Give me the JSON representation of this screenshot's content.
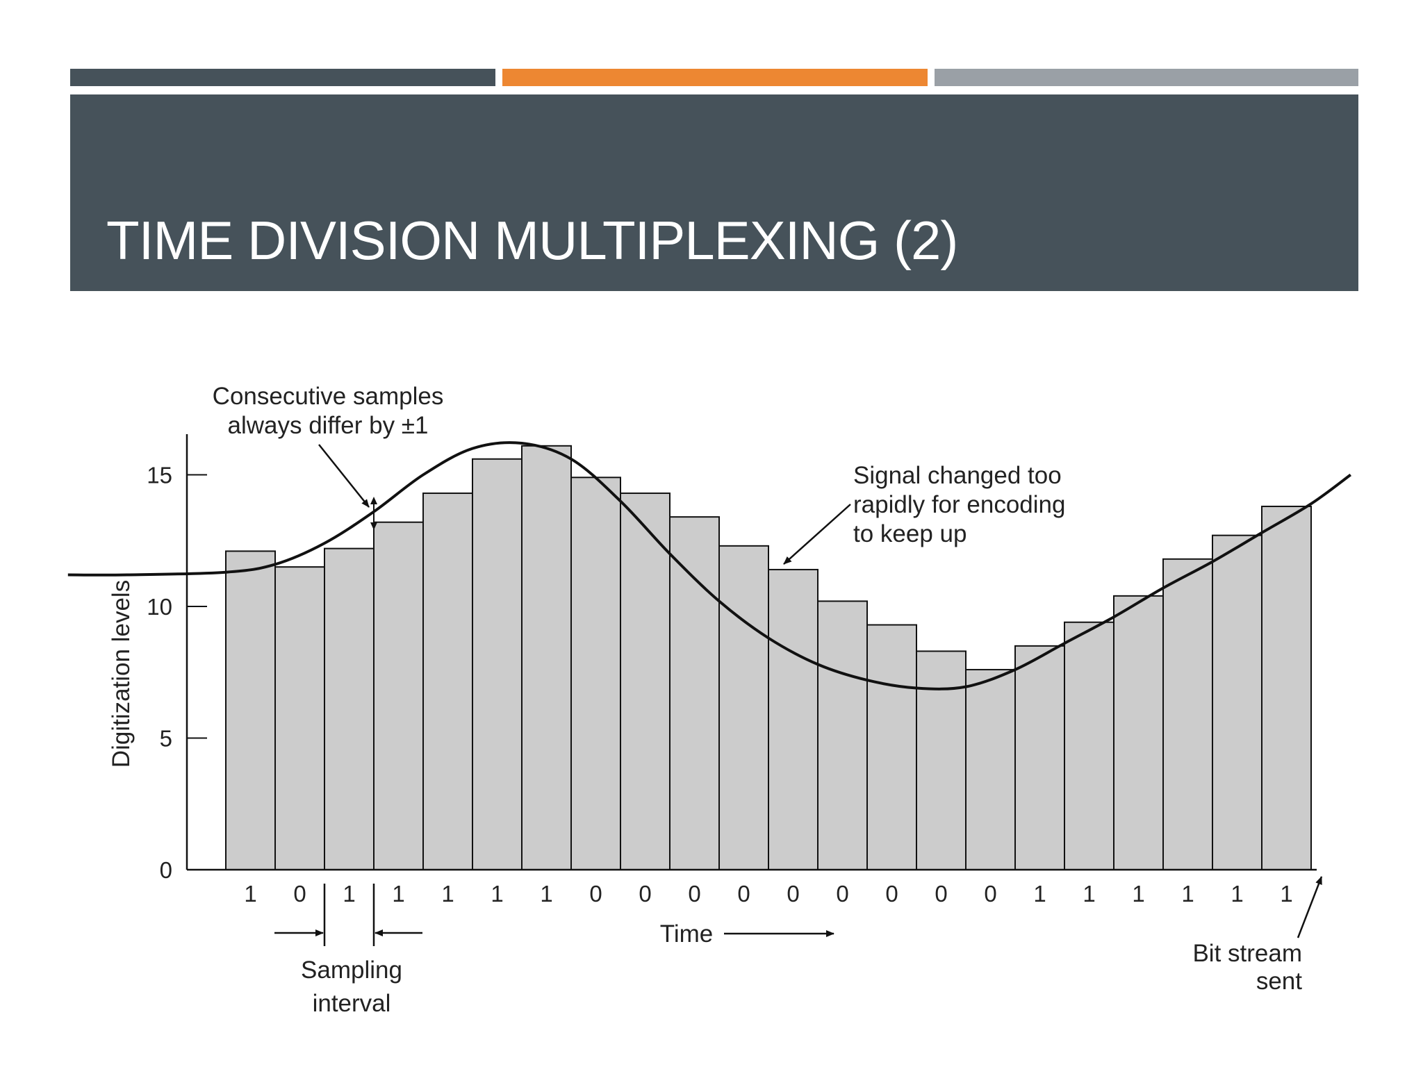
{
  "slide": {
    "title": "TIME DIVISION MULTIPLEXING (2)",
    "colors": {
      "bar_left": "#46525a",
      "bar_mid": "#ed8732",
      "bar_right": "#9aa0a6",
      "banner": "#46525a"
    }
  },
  "chart_data": {
    "type": "bar",
    "ylabel": "Digitization levels",
    "xlabel": "Time",
    "ylim": [
      0,
      17
    ],
    "y_ticks": [
      0,
      5,
      10,
      15
    ],
    "values": [
      12.1,
      11.5,
      12.2,
      13.2,
      14.3,
      15.6,
      16.1,
      14.9,
      14.3,
      13.4,
      12.3,
      11.4,
      10.2,
      9.3,
      8.3,
      7.6,
      8.5,
      9.4,
      10.4,
      11.8,
      12.7,
      13.8
    ],
    "bits": [
      "1",
      "0",
      "1",
      "1",
      "1",
      "1",
      "1",
      "0",
      "0",
      "0",
      "0",
      "0",
      "0",
      "0",
      "0",
      "0",
      "1",
      "1",
      "1",
      "1",
      "1",
      "1"
    ],
    "signal_curve": {
      "t": [
        -3.2,
        -2,
        0,
        1,
        2,
        3,
        4,
        5,
        6,
        7,
        8,
        9,
        10,
        11,
        12,
        13,
        14,
        15,
        16,
        17,
        18,
        19,
        20,
        21,
        22,
        22.8
      ],
      "level": [
        11.2,
        11.2,
        11.3,
        11.6,
        12.4,
        13.6,
        15.0,
        16.0,
        16.2,
        15.6,
        14.0,
        12.0,
        10.2,
        8.8,
        7.8,
        7.2,
        6.9,
        6.95,
        7.6,
        8.6,
        9.6,
        10.7,
        11.7,
        12.8,
        13.9,
        15.0
      ]
    },
    "bar_fill": "#cccccc",
    "annotations": {
      "consecutive_line1": "Consecutive samples",
      "consecutive_line2": "always differ by ±1",
      "signal_line1": "Signal changed too",
      "signal_line2": "rapidly for encoding",
      "signal_line3": "to keep up",
      "sampling_line1": "Sampling",
      "sampling_line2": "interval",
      "bitstream_line1": "Bit stream",
      "bitstream_line2": "sent"
    }
  }
}
